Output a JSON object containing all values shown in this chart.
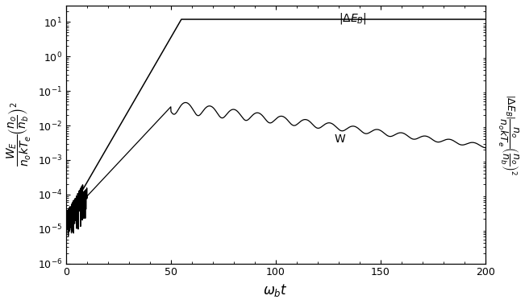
{
  "xlabel": "$\\omega_b t$",
  "ylabel_left": "$\\dfrac{W_E}{n_o kT_e}\\left(\\dfrac{n_o}{n_b}\\right)^2$",
  "ylabel_right": "$\\left|\\Delta E_B\\right|\\dfrac{n_o}{n_o kT_e}\\left(\\dfrac{n_o}{n_b}\\right)^2$",
  "xmin": 0,
  "xmax": 200,
  "ymin": 1e-06,
  "ymax": 30,
  "label_W": "W",
  "label_dEB": "$|\\Delta E_B|$",
  "line_color": "#000000",
  "background_color": "#ffffff",
  "ann_dEB_x": 130,
  "ann_dEB_y": 13,
  "ann_W_x": 128,
  "ann_W_y": 0.004,
  "xticks": [
    0,
    50,
    100,
    150,
    200
  ]
}
